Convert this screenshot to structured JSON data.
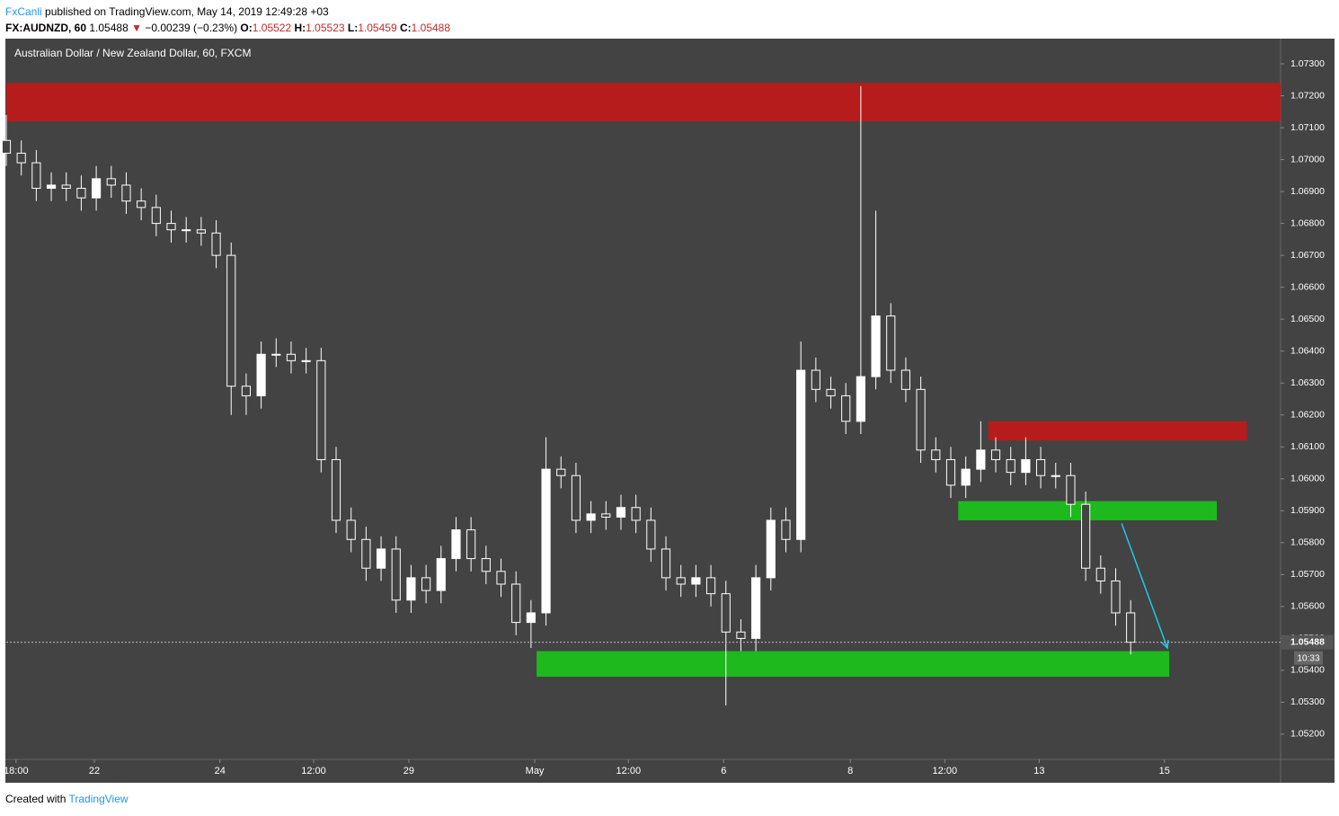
{
  "header": {
    "author": "FxCanli",
    "published": "published on TradingView.com, May 14, 2019 12:49:28 +03",
    "symbol": "FX:AUDNZD, 60",
    "last": "1.05488",
    "arrow": "▼",
    "change": "−0.00239 (−0.23%)",
    "open_label": "O:",
    "open": "1.05522",
    "high_label": "H:",
    "high": "1.05523",
    "low_label": "L:",
    "low": "1.05459",
    "close_label": "C:",
    "close": "1.05488"
  },
  "footer": {
    "created": "Created with",
    "brand": "TradingView"
  },
  "chart_data": {
    "type": "candlestick",
    "title": "Australian Dollar / New Zealand Dollar, 60, FXCM",
    "color": "#ffffff",
    "background": "#434343",
    "grid": false,
    "x": [
      0,
      4,
      8,
      12,
      16,
      20,
      24,
      28,
      32,
      36,
      40,
      44,
      48,
      52,
      56,
      60,
      64,
      68,
      72,
      76,
      80,
      84,
      88,
      92,
      96,
      100,
      104,
      108,
      112,
      116,
      120,
      124,
      128,
      132,
      136,
      140,
      144,
      148,
      152,
      156,
      160,
      164,
      168,
      172,
      176,
      180,
      184,
      188,
      192,
      196,
      200,
      204,
      208,
      212,
      216,
      220,
      224,
      228,
      232,
      236,
      240,
      244,
      248,
      252,
      256,
      260,
      264,
      268,
      272,
      276,
      280,
      284,
      288,
      292,
      296,
      300
    ],
    "open": [
      1.0706,
      1.0702,
      1.0699,
      1.0691,
      1.0692,
      1.0691,
      1.0688,
      1.0694,
      1.0692,
      1.0687,
      1.0685,
      1.068,
      1.0678,
      1.0678,
      1.0677,
      1.067,
      1.0629,
      1.0626,
      1.0639,
      1.0639,
      1.0637,
      1.0637,
      1.0606,
      1.0587,
      1.0581,
      1.0572,
      1.0578,
      1.0562,
      1.0569,
      1.0565,
      1.0575,
      1.0584,
      1.0575,
      1.0571,
      1.0567,
      1.0555,
      1.0558,
      1.0603,
      1.0601,
      1.0587,
      1.0589,
      1.0588,
      1.0591,
      1.0587,
      1.0578,
      1.0569,
      1.0567,
      1.0569,
      1.0564,
      1.0552,
      1.055,
      1.0569,
      1.0587,
      1.0581,
      1.0634,
      1.0628,
      1.0626,
      1.0618,
      1.0632,
      1.0651,
      1.0634,
      1.0628,
      1.0609,
      1.0606,
      1.0598,
      1.0603,
      1.0609,
      1.0606,
      1.0602,
      1.0606,
      1.0601,
      1.0601,
      1.0592,
      1.0572,
      1.0568,
      1.0558
    ],
    "high": [
      1.0714,
      1.0706,
      1.0703,
      1.0696,
      1.0696,
      1.0695,
      1.0698,
      1.0698,
      1.0696,
      1.0691,
      1.0689,
      1.0684,
      1.0682,
      1.0682,
      1.0681,
      1.0674,
      1.0633,
      1.0643,
      1.0644,
      1.0643,
      1.0641,
      1.0641,
      1.061,
      1.0591,
      1.0585,
      1.0582,
      1.0582,
      1.0573,
      1.0573,
      1.0579,
      1.0588,
      1.0588,
      1.0579,
      1.0575,
      1.0571,
      1.0562,
      1.0613,
      1.0607,
      1.0605,
      1.0593,
      1.0593,
      1.0595,
      1.0595,
      1.0591,
      1.0582,
      1.0573,
      1.0573,
      1.0573,
      1.0568,
      1.0556,
      1.0573,
      1.0591,
      1.0591,
      1.0643,
      1.0638,
      1.0632,
      1.063,
      1.0723,
      1.0684,
      1.0655,
      1.0638,
      1.0632,
      1.0613,
      1.061,
      1.0607,
      1.0618,
      1.0613,
      1.061,
      1.0613,
      1.061,
      1.0605,
      1.0605,
      1.0596,
      1.0576,
      1.0572,
      1.0562
    ],
    "low": [
      1.0698,
      1.0695,
      1.0687,
      1.0687,
      1.0687,
      1.0684,
      1.0684,
      1.0688,
      1.0683,
      1.0681,
      1.0676,
      1.0674,
      1.0674,
      1.0673,
      1.0666,
      1.062,
      1.062,
      1.0622,
      1.0635,
      1.0633,
      1.0633,
      1.0602,
      1.0583,
      1.0577,
      1.0568,
      1.0568,
      1.0558,
      1.0558,
      1.0561,
      1.0561,
      1.0571,
      1.0571,
      1.0567,
      1.0563,
      1.0551,
      1.0547,
      1.0554,
      1.0597,
      1.0583,
      1.0583,
      1.0584,
      1.0584,
      1.0583,
      1.0574,
      1.0565,
      1.0563,
      1.0563,
      1.056,
      1.0529,
      1.0546,
      1.0546,
      1.0565,
      1.0577,
      1.0577,
      1.0624,
      1.0622,
      1.0614,
      1.0614,
      1.0628,
      1.063,
      1.0624,
      1.0605,
      1.0602,
      1.0594,
      1.0594,
      1.0599,
      1.0602,
      1.0598,
      1.0598,
      1.0597,
      1.0597,
      1.0588,
      1.0568,
      1.0564,
      1.0554,
      1.0545
    ],
    "close": [
      1.0702,
      1.0699,
      1.0691,
      1.0692,
      1.0691,
      1.0688,
      1.0694,
      1.0692,
      1.0687,
      1.0685,
      1.068,
      1.0678,
      1.0678,
      1.0677,
      1.067,
      1.0629,
      1.0626,
      1.0639,
      1.0639,
      1.0637,
      1.0637,
      1.0606,
      1.0587,
      1.0581,
      1.0572,
      1.0578,
      1.0562,
      1.0569,
      1.0565,
      1.0575,
      1.0584,
      1.0575,
      1.0571,
      1.0567,
      1.0555,
      1.0558,
      1.0603,
      1.0601,
      1.0587,
      1.0589,
      1.0588,
      1.0591,
      1.0587,
      1.0578,
      1.0569,
      1.0567,
      1.0569,
      1.0564,
      1.0552,
      1.055,
      1.0569,
      1.0587,
      1.0581,
      1.0634,
      1.0628,
      1.0626,
      1.0618,
      1.0632,
      1.0651,
      1.0634,
      1.0628,
      1.0609,
      1.0606,
      1.0598,
      1.0603,
      1.0609,
      1.0606,
      1.0602,
      1.0606,
      1.0601,
      1.0601,
      1.0592,
      1.0572,
      1.0568,
      1.0558,
      1.05488
    ],
    "xlim": [
      0,
      340
    ],
    "ylim": [
      1.05121,
      1.07376
    ],
    "xticks": [
      {
        "value": 2.6,
        "label": "18:00"
      },
      {
        "value": 23.5,
        "label": "22"
      },
      {
        "value": 57,
        "label": "24"
      },
      {
        "value": 82,
        "label": "12:00"
      },
      {
        "value": 107.4,
        "label": "29"
      },
      {
        "value": 141,
        "label": "May"
      },
      {
        "value": 166,
        "label": "12:00"
      },
      {
        "value": 191.4,
        "label": "6"
      },
      {
        "value": 225.2,
        "label": "8"
      },
      {
        "value": 250.4,
        "label": "12:00"
      },
      {
        "value": 275.6,
        "label": "13"
      },
      {
        "value": 309,
        "label": "15"
      }
    ],
    "yticks": [
      {
        "value": 1.052,
        "label": "1.05200"
      },
      {
        "value": 1.053,
        "label": "1.05300"
      },
      {
        "value": 1.054,
        "label": "1.05400"
      },
      {
        "value": 1.055,
        "label": "1.05500"
      },
      {
        "value": 1.056,
        "label": "1.05600"
      },
      {
        "value": 1.057,
        "label": "1.05700"
      },
      {
        "value": 1.058,
        "label": "1.05800"
      },
      {
        "value": 1.059,
        "label": "1.05900"
      },
      {
        "value": 1.06,
        "label": "1.06000"
      },
      {
        "value": 1.061,
        "label": "1.06100"
      },
      {
        "value": 1.062,
        "label": "1.06200"
      },
      {
        "value": 1.063,
        "label": "1.06300"
      },
      {
        "value": 1.064,
        "label": "1.06400"
      },
      {
        "value": 1.065,
        "label": "1.06500"
      },
      {
        "value": 1.066,
        "label": "1.06600"
      },
      {
        "value": 1.067,
        "label": "1.06700"
      },
      {
        "value": 1.068,
        "label": "1.06800"
      },
      {
        "value": 1.069,
        "label": "1.06900"
      },
      {
        "value": 1.07,
        "label": "1.07000"
      },
      {
        "value": 1.071,
        "label": "1.07100"
      },
      {
        "value": 1.072,
        "label": "1.07200"
      },
      {
        "value": 1.073,
        "label": "1.07300"
      }
    ],
    "zones": [
      {
        "x": [
          0,
          340
        ],
        "price": [
          1.0712,
          1.0724
        ],
        "color": "#b71c1c"
      },
      {
        "x": [
          262,
          331
        ],
        "price": [
          1.0612,
          1.0618
        ],
        "color": "#b71c1c"
      },
      {
        "x": [
          254,
          323
        ],
        "price": [
          1.0587,
          1.0593
        ],
        "color": "#1db91d"
      },
      {
        "x": [
          141.5,
          310.3
        ],
        "price": [
          1.0538,
          1.0546
        ],
        "color": "#1db91d"
      }
    ],
    "arrow": {
      "x": [
        297.6,
        309.8
      ],
      "price": [
        1.0586,
        1.0547
      ],
      "color": "#21c8e6"
    },
    "last_price": 1.05488,
    "countdown": "10:33"
  }
}
